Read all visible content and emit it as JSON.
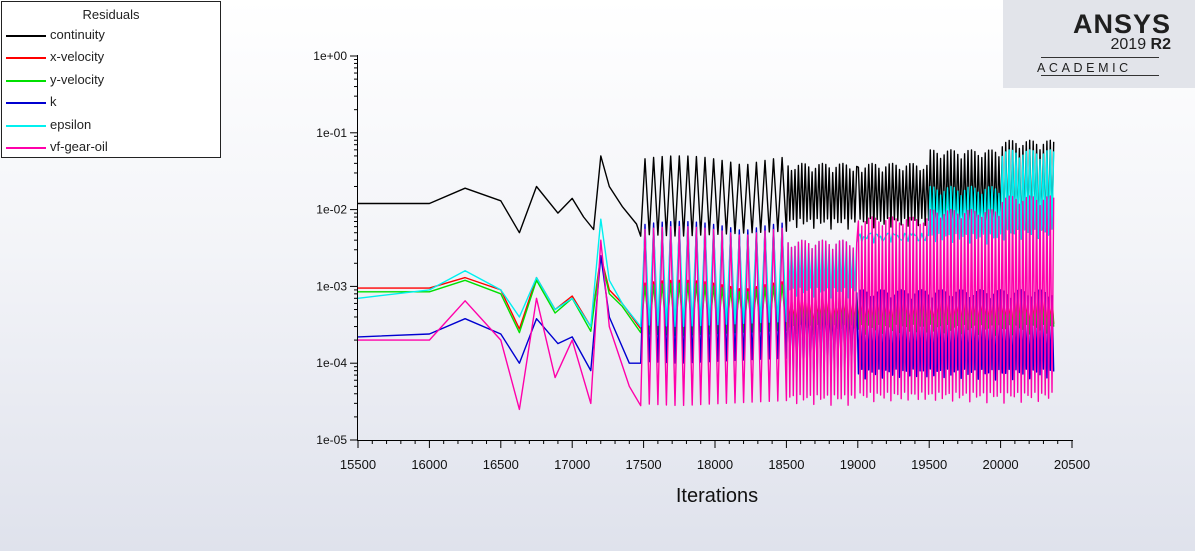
{
  "legend": {
    "title": "Residuals",
    "items": [
      {
        "label": "continuity",
        "color": "#000000"
      },
      {
        "label": "x-velocity",
        "color": "#ff0000"
      },
      {
        "label": "y-velocity",
        "color": "#00e000"
      },
      {
        "label": "k",
        "color": "#0000d0"
      },
      {
        "label": "epsilon",
        "color": "#00f0f0"
      },
      {
        "label": "vf-gear-oil",
        "color": "#ff00aa"
      }
    ]
  },
  "logo": {
    "brand": "ANSYS",
    "version": "2019",
    "release": "R2",
    "tier": "ACADEMIC"
  },
  "chart_data": {
    "type": "line",
    "xlabel": "Iterations",
    "ylabel": "",
    "xlim": [
      15500,
      20500
    ],
    "ylim": [
      1e-05,
      1
    ],
    "yscale": "log",
    "xticks": [
      15500,
      16000,
      16500,
      17000,
      17500,
      18000,
      18500,
      19000,
      19500,
      20000,
      20500
    ],
    "ytick_labels": [
      "1e+00",
      "1e-01",
      "1e-02",
      "1e-03",
      "1e-04",
      "1e-05"
    ],
    "yticks": [
      1,
      0.1,
      0.01,
      0.001,
      0.0001,
      1e-05
    ],
    "grid": false,
    "legend_position": "top-left, outside plot",
    "x_end": 20380,
    "series": [
      {
        "name": "continuity",
        "color": "#000000",
        "points": [
          [
            15500,
            0.012
          ],
          [
            16000,
            0.012
          ],
          [
            16250,
            0.019
          ],
          [
            16500,
            0.013
          ],
          [
            16630,
            0.005
          ],
          [
            16750,
            0.02
          ],
          [
            16900,
            0.009
          ],
          [
            17000,
            0.014
          ],
          [
            17080,
            0.008
          ],
          [
            17150,
            0.0055
          ],
          [
            17200,
            0.05
          ],
          [
            17260,
            0.02
          ],
          [
            17350,
            0.011
          ],
          [
            17450,
            0.0065
          ],
          [
            17480,
            0.0045
          ]
        ],
        "oscillation": {
          "x_start": 17480,
          "x_end": 20380,
          "segments": [
            {
              "x0": 17480,
              "x1": 18500,
              "period": 60,
              "high": 0.05,
              "low": 0.0045
            },
            {
              "x0": 18500,
              "x1": 19000,
              "period": 24,
              "high": 0.04,
              "low": 0.0055
            },
            {
              "x0": 19000,
              "x1": 19500,
              "period": 24,
              "high": 0.04,
              "low": 0.0055
            },
            {
              "x0": 19500,
              "x1": 20000,
              "period": 24,
              "high": 0.06,
              "low": 0.005
            },
            {
              "x0": 20000,
              "x1": 20380,
              "period": 24,
              "high": 0.08,
              "low": 0.004
            }
          ]
        }
      },
      {
        "name": "x-velocity",
        "color": "#ff0000",
        "points": [
          [
            15500,
            0.00095
          ],
          [
            16000,
            0.00095
          ],
          [
            16250,
            0.0013
          ],
          [
            16500,
            0.0009
          ],
          [
            16630,
            0.00028
          ],
          [
            16750,
            0.0013
          ],
          [
            16880,
            0.0005
          ],
          [
            17000,
            0.00075
          ],
          [
            17130,
            0.0003
          ],
          [
            17200,
            0.0025
          ],
          [
            17260,
            0.0009
          ],
          [
            17350,
            0.0006
          ],
          [
            17480,
            0.00028
          ]
        ],
        "oscillation": {
          "x_start": 17480,
          "x_end": 20380,
          "segments": [
            {
              "x0": 17480,
              "x1": 18500,
              "period": 60,
              "high": 0.0012,
              "low": 0.00025
            },
            {
              "x0": 18500,
              "x1": 20380,
              "period": 24,
              "high": 0.0009,
              "low": 0.00025
            }
          ]
        }
      },
      {
        "name": "y-velocity",
        "color": "#00e000",
        "points": [
          [
            15500,
            0.00085
          ],
          [
            16000,
            0.00085
          ],
          [
            16250,
            0.0012
          ],
          [
            16500,
            0.0008
          ],
          [
            16630,
            0.00025
          ],
          [
            16750,
            0.0012
          ],
          [
            16880,
            0.00045
          ],
          [
            17000,
            0.0007
          ],
          [
            17130,
            0.00026
          ],
          [
            17200,
            0.0024
          ],
          [
            17260,
            0.0008
          ],
          [
            17350,
            0.00055
          ],
          [
            17480,
            0.00025
          ]
        ],
        "oscillation": {
          "x_start": 17480,
          "x_end": 20380,
          "segments": [
            {
              "x0": 17480,
              "x1": 18500,
              "period": 60,
              "high": 0.0011,
              "low": 0.00023
            },
            {
              "x0": 18500,
              "x1": 20380,
              "period": 24,
              "high": 0.0008,
              "low": 0.00023
            }
          ]
        }
      },
      {
        "name": "k",
        "color": "#0000d0",
        "points": [
          [
            15500,
            0.00022
          ],
          [
            16000,
            0.00024
          ],
          [
            16250,
            0.00038
          ],
          [
            16500,
            0.00024
          ],
          [
            16630,
            0.0001
          ],
          [
            16750,
            0.00038
          ],
          [
            16900,
            0.00018
          ],
          [
            17000,
            0.00022
          ],
          [
            17130,
            8e-05
          ],
          [
            17200,
            0.0025
          ],
          [
            17260,
            0.0004
          ],
          [
            17400,
            0.0001
          ],
          [
            17480,
            0.0001
          ]
        ],
        "oscillation": {
          "x_start": 17480,
          "x_end": 20380,
          "segments": [
            {
              "x0": 17480,
              "x1": 18500,
              "period": 60,
              "high": 0.007,
              "low": 0.0001
            },
            {
              "x0": 18500,
              "x1": 20380,
              "period": 24,
              "high": 0.0009,
              "low": 6e-05
            }
          ]
        }
      },
      {
        "name": "epsilon",
        "color": "#00f0f0",
        "points": [
          [
            15500,
            0.0007
          ],
          [
            16000,
            0.0009
          ],
          [
            16250,
            0.0016
          ],
          [
            16500,
            0.0009
          ],
          [
            16630,
            0.0004
          ],
          [
            16750,
            0.0013
          ],
          [
            16880,
            0.0005
          ],
          [
            17000,
            0.0007
          ],
          [
            17130,
            0.0003
          ],
          [
            17200,
            0.0075
          ],
          [
            17260,
            0.0012
          ],
          [
            17350,
            0.0006
          ],
          [
            17480,
            0.0003
          ]
        ],
        "oscillation": {
          "x_start": 17480,
          "x_end": 20380,
          "segments": [
            {
              "x0": 17480,
              "x1": 18500,
              "period": 60,
              "high": 0.006,
              "low": 0.0003
            },
            {
              "x0": 18500,
              "x1": 19000,
              "period": 24,
              "high": 0.004,
              "low": 0.0007
            },
            {
              "x0": 19000,
              "x1": 19500,
              "period": 24,
              "high": 0.005,
              "low": 0.0035
            },
            {
              "x0": 19500,
              "x1": 20000,
              "period": 24,
              "high": 0.02,
              "low": 0.0035
            },
            {
              "x0": 20000,
              "x1": 20380,
              "period": 24,
              "high": 0.06,
              "low": 0.004
            }
          ]
        }
      },
      {
        "name": "vf-gear-oil",
        "color": "#ff00aa",
        "points": [
          [
            15500,
            0.0002
          ],
          [
            16000,
            0.0002
          ],
          [
            16250,
            0.00065
          ],
          [
            16500,
            0.0002
          ],
          [
            16630,
            2.5e-05
          ],
          [
            16750,
            0.0007
          ],
          [
            16880,
            6.5e-05
          ],
          [
            17000,
            0.0002
          ],
          [
            17130,
            3e-05
          ],
          [
            17200,
            0.004
          ],
          [
            17260,
            0.0003
          ],
          [
            17400,
            5e-05
          ],
          [
            17480,
            2.8e-05
          ]
        ],
        "oscillation": {
          "x_start": 17480,
          "x_end": 20380,
          "segments": [
            {
              "x0": 17480,
              "x1": 18500,
              "period": 60,
              "high": 0.006,
              "low": 2.8e-05
            },
            {
              "x0": 18500,
              "x1": 19000,
              "period": 24,
              "high": 0.004,
              "low": 2.8e-05
            },
            {
              "x0": 19000,
              "x1": 19500,
              "period": 24,
              "high": 0.008,
              "low": 3e-05
            },
            {
              "x0": 19500,
              "x1": 20000,
              "period": 24,
              "high": 0.01,
              "low": 3e-05
            },
            {
              "x0": 20000,
              "x1": 20380,
              "period": 24,
              "high": 0.015,
              "low": 3e-05
            }
          ]
        }
      }
    ]
  }
}
